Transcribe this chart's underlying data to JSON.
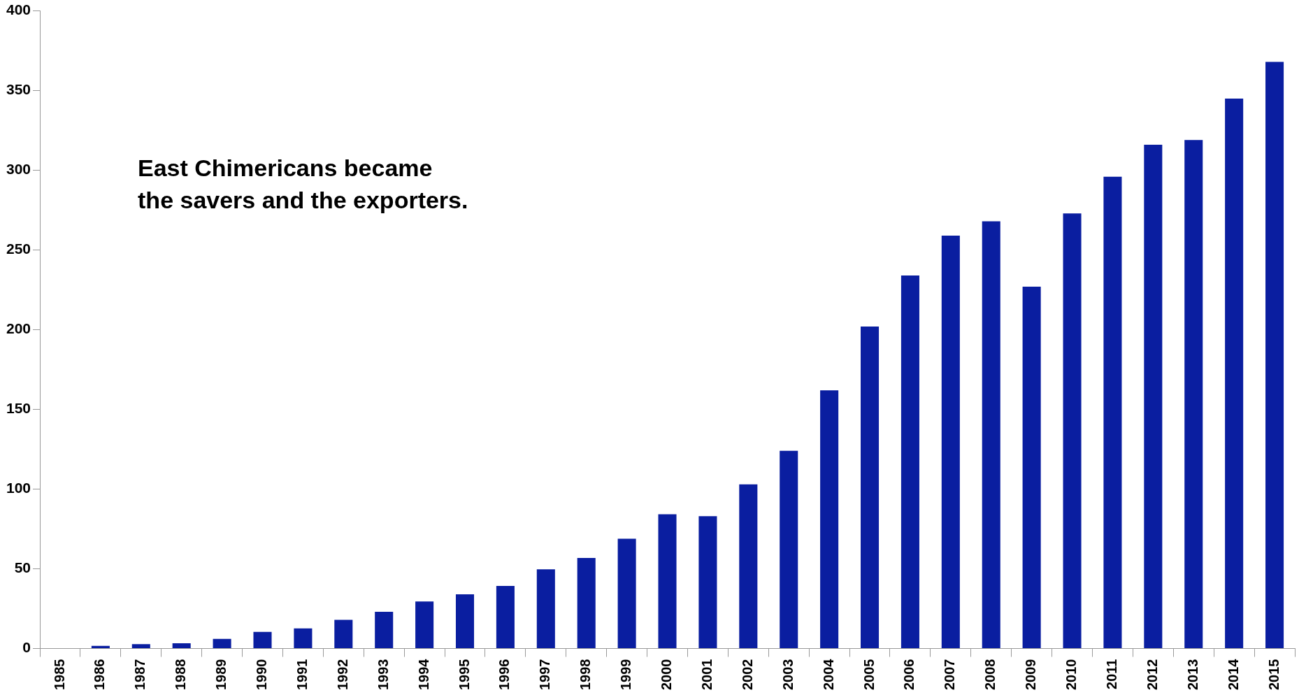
{
  "chart_data": {
    "type": "bar",
    "categories": [
      "1985",
      "1986",
      "1987",
      "1988",
      "1989",
      "1990",
      "1991",
      "1992",
      "1993",
      "1994",
      "1995",
      "1996",
      "1997",
      "1998",
      "1999",
      "2000",
      "2001",
      "2002",
      "2003",
      "2004",
      "2005",
      "2006",
      "2007",
      "2008",
      "2009",
      "2010",
      "2011",
      "2012",
      "2013",
      "2014",
      "2015"
    ],
    "values": [
      0,
      1.6,
      2.7,
      3.3,
      6,
      10.4,
      12.6,
      18,
      23,
      29.5,
      34,
      39.3,
      49.7,
      56.8,
      68.9,
      84.2,
      83,
      103,
      124,
      162,
      202,
      234,
      259,
      268,
      227,
      273,
      296,
      316,
      319,
      345,
      368
    ],
    "color": "#0a1ea0",
    "ylim": [
      0,
      400
    ],
    "yticks": [
      0,
      50,
      100,
      150,
      200,
      250,
      300,
      350,
      400
    ],
    "grid": false,
    "legend": false,
    "annotations": [
      "East Chimericans became\nthe savers and the exporters."
    ]
  }
}
